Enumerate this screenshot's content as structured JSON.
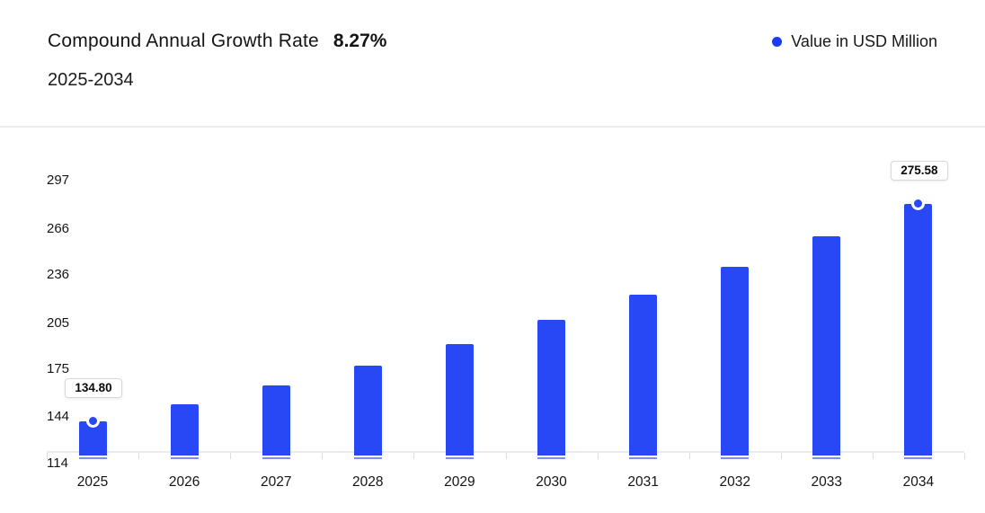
{
  "header": {
    "title": "Compound Annual Growth Rate",
    "cagr_value": "8.27%",
    "subtitle": "2025-2034"
  },
  "legend": {
    "label": "Value in USD Million",
    "marker_color": "#1b3af9"
  },
  "colors": {
    "bar": "#2848f5",
    "bar_base_stripe": "#7e8cf8",
    "axis_line": "#ebebeb",
    "tick": "#dddddd",
    "axis_label": "#141414",
    "tooltip_border": "#d9d9d9",
    "tooltip_bg": "#ffffff"
  },
  "chart_data": {
    "type": "bar",
    "title": "Compound Annual Growth Rate 8.27% 2025-2034",
    "series_name": "Value in USD Million",
    "categories": [
      "2025",
      "2026",
      "2027",
      "2028",
      "2029",
      "2030",
      "2031",
      "2032",
      "2033",
      "2034"
    ],
    "values": [
      134.8,
      145.95,
      158.02,
      171.09,
      185.24,
      200.56,
      217.14,
      235.1,
      254.54,
      275.58
    ],
    "labeled_points": [
      {
        "index": 0,
        "label": "134.80"
      },
      {
        "index": 9,
        "label": "275.58"
      }
    ],
    "yticks": [
      "297",
      "266",
      "236",
      "205",
      "175",
      "144",
      "114"
    ],
    "ytick_values": [
      297,
      266,
      236,
      205,
      175,
      144,
      114
    ],
    "ylim": [
      114,
      297
    ],
    "grid": false,
    "legend_position": "top-right",
    "xlabel": "",
    "ylabel": ""
  }
}
